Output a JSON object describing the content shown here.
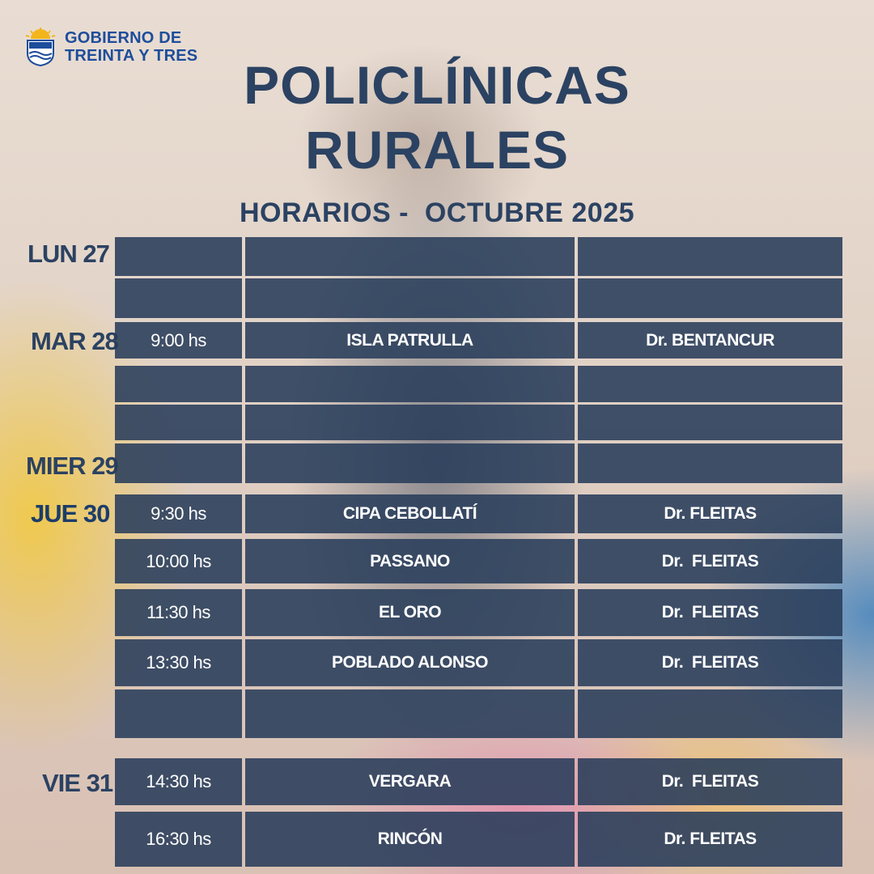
{
  "logo": {
    "line1": "GOBIERNO DE",
    "line2": "TREINTA Y TRES"
  },
  "title": {
    "line1": "POLICLÍNICAS",
    "line2": "RURALES"
  },
  "subtitle": "HORARIOS -  OCTUBRE 2025",
  "days": [
    "LUN 27",
    "MAR 28",
    "MIER 29",
    "JUE 30",
    "VIE 31"
  ],
  "rows": [
    {
      "time": "",
      "place": "",
      "doctor": ""
    },
    {
      "time": "",
      "place": "",
      "doctor": ""
    },
    {
      "time": "9:00 hs",
      "place": "ISLA PATRULLA",
      "doctor": "Dr. BENTANCUR"
    },
    {
      "time": "",
      "place": "",
      "doctor": ""
    },
    {
      "time": "",
      "place": "",
      "doctor": ""
    },
    {
      "time": "",
      "place": "",
      "doctor": ""
    },
    {
      "time": "9:30 hs",
      "place": "CIPA CEBOLLATÍ",
      "doctor": "Dr. FLEITAS"
    },
    {
      "time": "10:00 hs",
      "place": "PASSANO",
      "doctor": "Dr.  FLEITAS"
    },
    {
      "time": "11:30 hs",
      "place": "EL ORO",
      "doctor": "Dr.  FLEITAS"
    },
    {
      "time": "13:30 hs",
      "place": "POBLADO ALONSO",
      "doctor": "Dr.  FLEITAS"
    },
    {
      "time": "",
      "place": "",
      "doctor": ""
    },
    {
      "time": "14:30 hs",
      "place": "VERGARA",
      "doctor": "Dr.  FLEITAS"
    },
    {
      "time": "16:30 hs",
      "place": "RINCÓN",
      "doctor": "Dr. FLEITAS"
    }
  ],
  "colors": {
    "navy_text": "#2b4262",
    "cell_bg": "#283c5a",
    "logo_blue": "#1d4d9b"
  }
}
